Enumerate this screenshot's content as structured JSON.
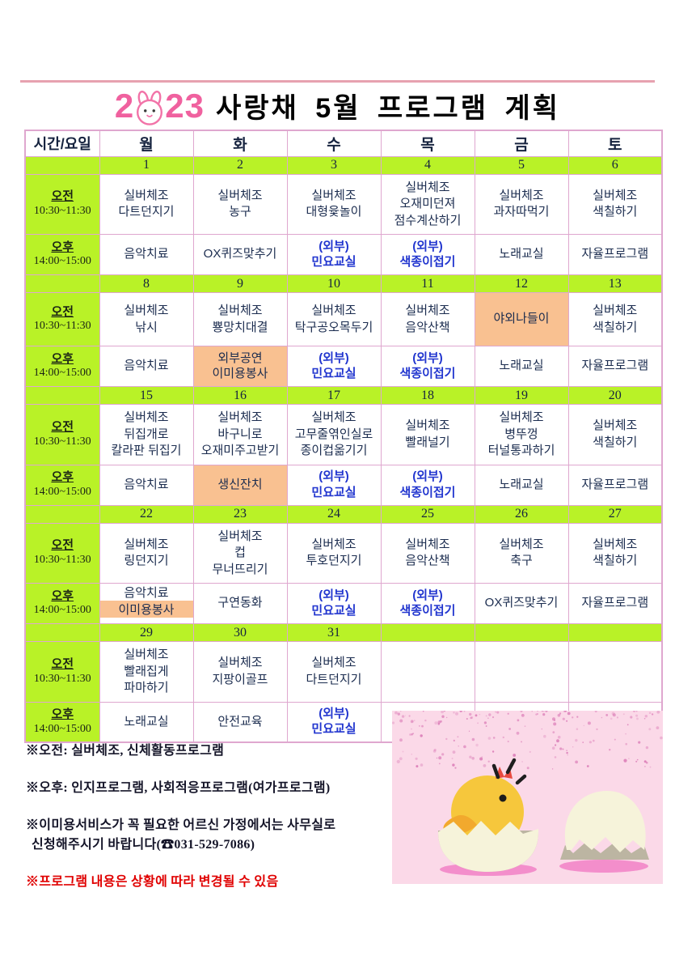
{
  "title": {
    "year": "2023",
    "year_left": "2",
    "year_right": "23",
    "text": "사랑채 5월 프로그램 계획"
  },
  "table": {
    "corner_header": "시간/요일",
    "day_headers": [
      {
        "label": "월",
        "color": "dark"
      },
      {
        "label": "화",
        "color": "dark"
      },
      {
        "label": "수",
        "color": "dark"
      },
      {
        "label": "목",
        "color": "dark"
      },
      {
        "label": "금",
        "color": "dark"
      },
      {
        "label": "토",
        "color": "blue"
      }
    ],
    "time_slots": {
      "morning": {
        "label": "오전",
        "time": "10:30~11:30"
      },
      "afternoon": {
        "label": "오후",
        "time": "14:00~15:00"
      }
    },
    "weeks": [
      {
        "dates": [
          {
            "d": "1",
            "c": "dark"
          },
          {
            "d": "2",
            "c": "dark"
          },
          {
            "d": "3",
            "c": "dark"
          },
          {
            "d": "4",
            "c": "dark"
          },
          {
            "d": "5",
            "c": "red"
          },
          {
            "d": "6",
            "c": "blue"
          }
        ],
        "morning": [
          {
            "type": "normal",
            "lines": [
              "실버체조",
              "다트던지기"
            ]
          },
          {
            "type": "normal",
            "lines": [
              "실버체조",
              "농구"
            ]
          },
          {
            "type": "normal",
            "lines": [
              "실버체조",
              "대형윷놀이"
            ]
          },
          {
            "type": "normal",
            "lines": [
              "실버체조",
              "오재미던져",
              "점수계산하기"
            ]
          },
          {
            "type": "normal",
            "lines": [
              "실버체조",
              "과자따먹기"
            ]
          },
          {
            "type": "normal",
            "lines": [
              "실버체조",
              "색칠하기"
            ]
          }
        ],
        "afternoon": [
          {
            "type": "normal",
            "lines": [
              "음악치료"
            ]
          },
          {
            "type": "normal",
            "lines": [
              "OX퀴즈맞추기"
            ]
          },
          {
            "type": "external",
            "lines": [
              "(외부)",
              "민요교실"
            ]
          },
          {
            "type": "external",
            "lines": [
              "(외부)",
              "색종이접기"
            ]
          },
          {
            "type": "normal",
            "lines": [
              "노래교실"
            ]
          },
          {
            "type": "normal",
            "lines": [
              "자율프로그램"
            ]
          }
        ]
      },
      {
        "dates": [
          {
            "d": "8",
            "c": "dark"
          },
          {
            "d": "9",
            "c": "dark"
          },
          {
            "d": "10",
            "c": "dark"
          },
          {
            "d": "11",
            "c": "dark"
          },
          {
            "d": "12",
            "c": "dark"
          },
          {
            "d": "13",
            "c": "blue"
          }
        ],
        "morning": [
          {
            "type": "normal",
            "lines": [
              "실버체조",
              "낚시"
            ]
          },
          {
            "type": "normal",
            "lines": [
              "실버체조",
              "뿅망치대결"
            ]
          },
          {
            "type": "normal",
            "lines": [
              "실버체조",
              "탁구공오목두기"
            ]
          },
          {
            "type": "normal",
            "lines": [
              "실버체조",
              "음악산책"
            ]
          },
          {
            "type": "orange",
            "lines": [
              "야외나들이"
            ]
          },
          {
            "type": "normal",
            "lines": [
              "실버체조",
              "색칠하기"
            ]
          }
        ],
        "afternoon": [
          {
            "type": "normal",
            "lines": [
              "음악치료"
            ]
          },
          {
            "type": "orange",
            "lines": [
              "외부공연",
              "이미용봉사"
            ]
          },
          {
            "type": "external",
            "lines": [
              "(외부)",
              "민요교실"
            ]
          },
          {
            "type": "external",
            "lines": [
              "(외부)",
              "색종이접기"
            ]
          },
          {
            "type": "normal",
            "lines": [
              "노래교실"
            ]
          },
          {
            "type": "normal",
            "lines": [
              "자율프로그램"
            ]
          }
        ]
      },
      {
        "dates": [
          {
            "d": "15",
            "c": "dark"
          },
          {
            "d": "16",
            "c": "dark"
          },
          {
            "d": "17",
            "c": "dark"
          },
          {
            "d": "18",
            "c": "dark"
          },
          {
            "d": "19",
            "c": "dark"
          },
          {
            "d": "20",
            "c": "blue"
          }
        ],
        "morning": [
          {
            "type": "normal",
            "lines": [
              "실버체조",
              "뒤집개로",
              "칼라판 뒤집기"
            ]
          },
          {
            "type": "normal",
            "lines": [
              "실버체조",
              "바구니로",
              "오재미주고받기"
            ]
          },
          {
            "type": "normal",
            "lines": [
              "실버체조",
              "고무줄엮인실로",
              "종이컵옮기기"
            ]
          },
          {
            "type": "normal",
            "lines": [
              "실버체조",
              "빨래널기"
            ]
          },
          {
            "type": "normal",
            "lines": [
              "실버체조",
              "병뚜껑",
              "터널통과하기"
            ]
          },
          {
            "type": "normal",
            "lines": [
              "실버체조",
              "색칠하기"
            ]
          }
        ],
        "afternoon": [
          {
            "type": "normal",
            "lines": [
              "음악치료"
            ]
          },
          {
            "type": "orange",
            "lines": [
              "생신잔치"
            ]
          },
          {
            "type": "external",
            "lines": [
              "(외부)",
              "민요교실"
            ]
          },
          {
            "type": "external",
            "lines": [
              "(외부)",
              "색종이접기"
            ]
          },
          {
            "type": "normal",
            "lines": [
              "노래교실"
            ]
          },
          {
            "type": "normal",
            "lines": [
              "자율프로그램"
            ]
          }
        ]
      },
      {
        "dates": [
          {
            "d": "22",
            "c": "dark"
          },
          {
            "d": "23",
            "c": "dark"
          },
          {
            "d": "24",
            "c": "dark"
          },
          {
            "d": "25",
            "c": "dark"
          },
          {
            "d": "26",
            "c": "dark"
          },
          {
            "d": "27",
            "c": "red"
          }
        ],
        "morning": [
          {
            "type": "normal",
            "lines": [
              "실버체조",
              "링던지기"
            ]
          },
          {
            "type": "normal",
            "lines": [
              "실버체조",
              "컵",
              "무너뜨리기"
            ]
          },
          {
            "type": "normal",
            "lines": [
              "실버체조",
              "투호던지기"
            ]
          },
          {
            "type": "normal",
            "lines": [
              "실버체조",
              "음악산책"
            ]
          },
          {
            "type": "normal",
            "lines": [
              "실버체조",
              "축구"
            ]
          },
          {
            "type": "normal",
            "lines": [
              "실버체조",
              "색칠하기"
            ]
          }
        ],
        "afternoon": [
          {
            "type": "split",
            "top": "음악치료",
            "bottom": "이미용봉사"
          },
          {
            "type": "normal",
            "lines": [
              "구연동화"
            ]
          },
          {
            "type": "external",
            "lines": [
              "(외부)",
              "민요교실"
            ]
          },
          {
            "type": "external",
            "lines": [
              "(외부)",
              "색종이접기"
            ]
          },
          {
            "type": "normal",
            "lines": [
              "OX퀴즈맞추기"
            ]
          },
          {
            "type": "normal",
            "lines": [
              "자율프로그램"
            ]
          }
        ]
      },
      {
        "dates": [
          {
            "d": "29",
            "c": "dark"
          },
          {
            "d": "30",
            "c": "dark"
          },
          {
            "d": "31",
            "c": "dark"
          },
          {
            "d": "",
            "c": "dark"
          },
          {
            "d": "",
            "c": "dark"
          },
          {
            "d": "",
            "c": "dark"
          }
        ],
        "morning": [
          {
            "type": "normal",
            "lines": [
              "실버체조",
              "빨래집게",
              "파마하기"
            ]
          },
          {
            "type": "normal",
            "lines": [
              "실버체조",
              "지팡이골프"
            ]
          },
          {
            "type": "normal",
            "lines": [
              "실버체조",
              "다트던지기"
            ]
          },
          {
            "type": "empty"
          },
          {
            "type": "empty"
          },
          {
            "type": "empty"
          }
        ],
        "afternoon": [
          {
            "type": "normal",
            "lines": [
              "노래교실"
            ]
          },
          {
            "type": "normal",
            "lines": [
              "안전교육"
            ]
          },
          {
            "type": "external",
            "lines": [
              "(외부)",
              "민요교실"
            ]
          },
          {
            "type": "empty"
          },
          {
            "type": "empty"
          },
          {
            "type": "empty"
          }
        ]
      }
    ]
  },
  "notes": [
    {
      "color": "dark",
      "lines": [
        "※오전: 실버체조, 신체활동프로그램"
      ]
    },
    {
      "color": "dark",
      "lines": [
        "※오후: 인지프로그램, 사회적응프로그램(여가프로그램)"
      ]
    },
    {
      "color": "dark",
      "lines": [
        "※이미용서비스가 꼭 필요한 어르신 가정에서는 사무실로",
        "신청해주시기 바랍니다(☎031-529-7086)"
      ]
    },
    {
      "color": "red",
      "lines": [
        "※프로그램 내용은 상황에 따라 변경될 수 있음"
      ]
    }
  ],
  "colors": {
    "header_green": "#b9f227",
    "highlight_orange": "#f9c191",
    "border_pink": "#dfa7cf",
    "text_navy": "#1b2c4f",
    "external_blue": "#2236cf",
    "saturday_blue": "#1e3ad6",
    "holiday_red": "#e53030",
    "note_red": "#e00000",
    "title_pink": "#f0619f",
    "top_rule_pink": "#e7a2b0",
    "illustration_bg": "#fbd9e8"
  }
}
